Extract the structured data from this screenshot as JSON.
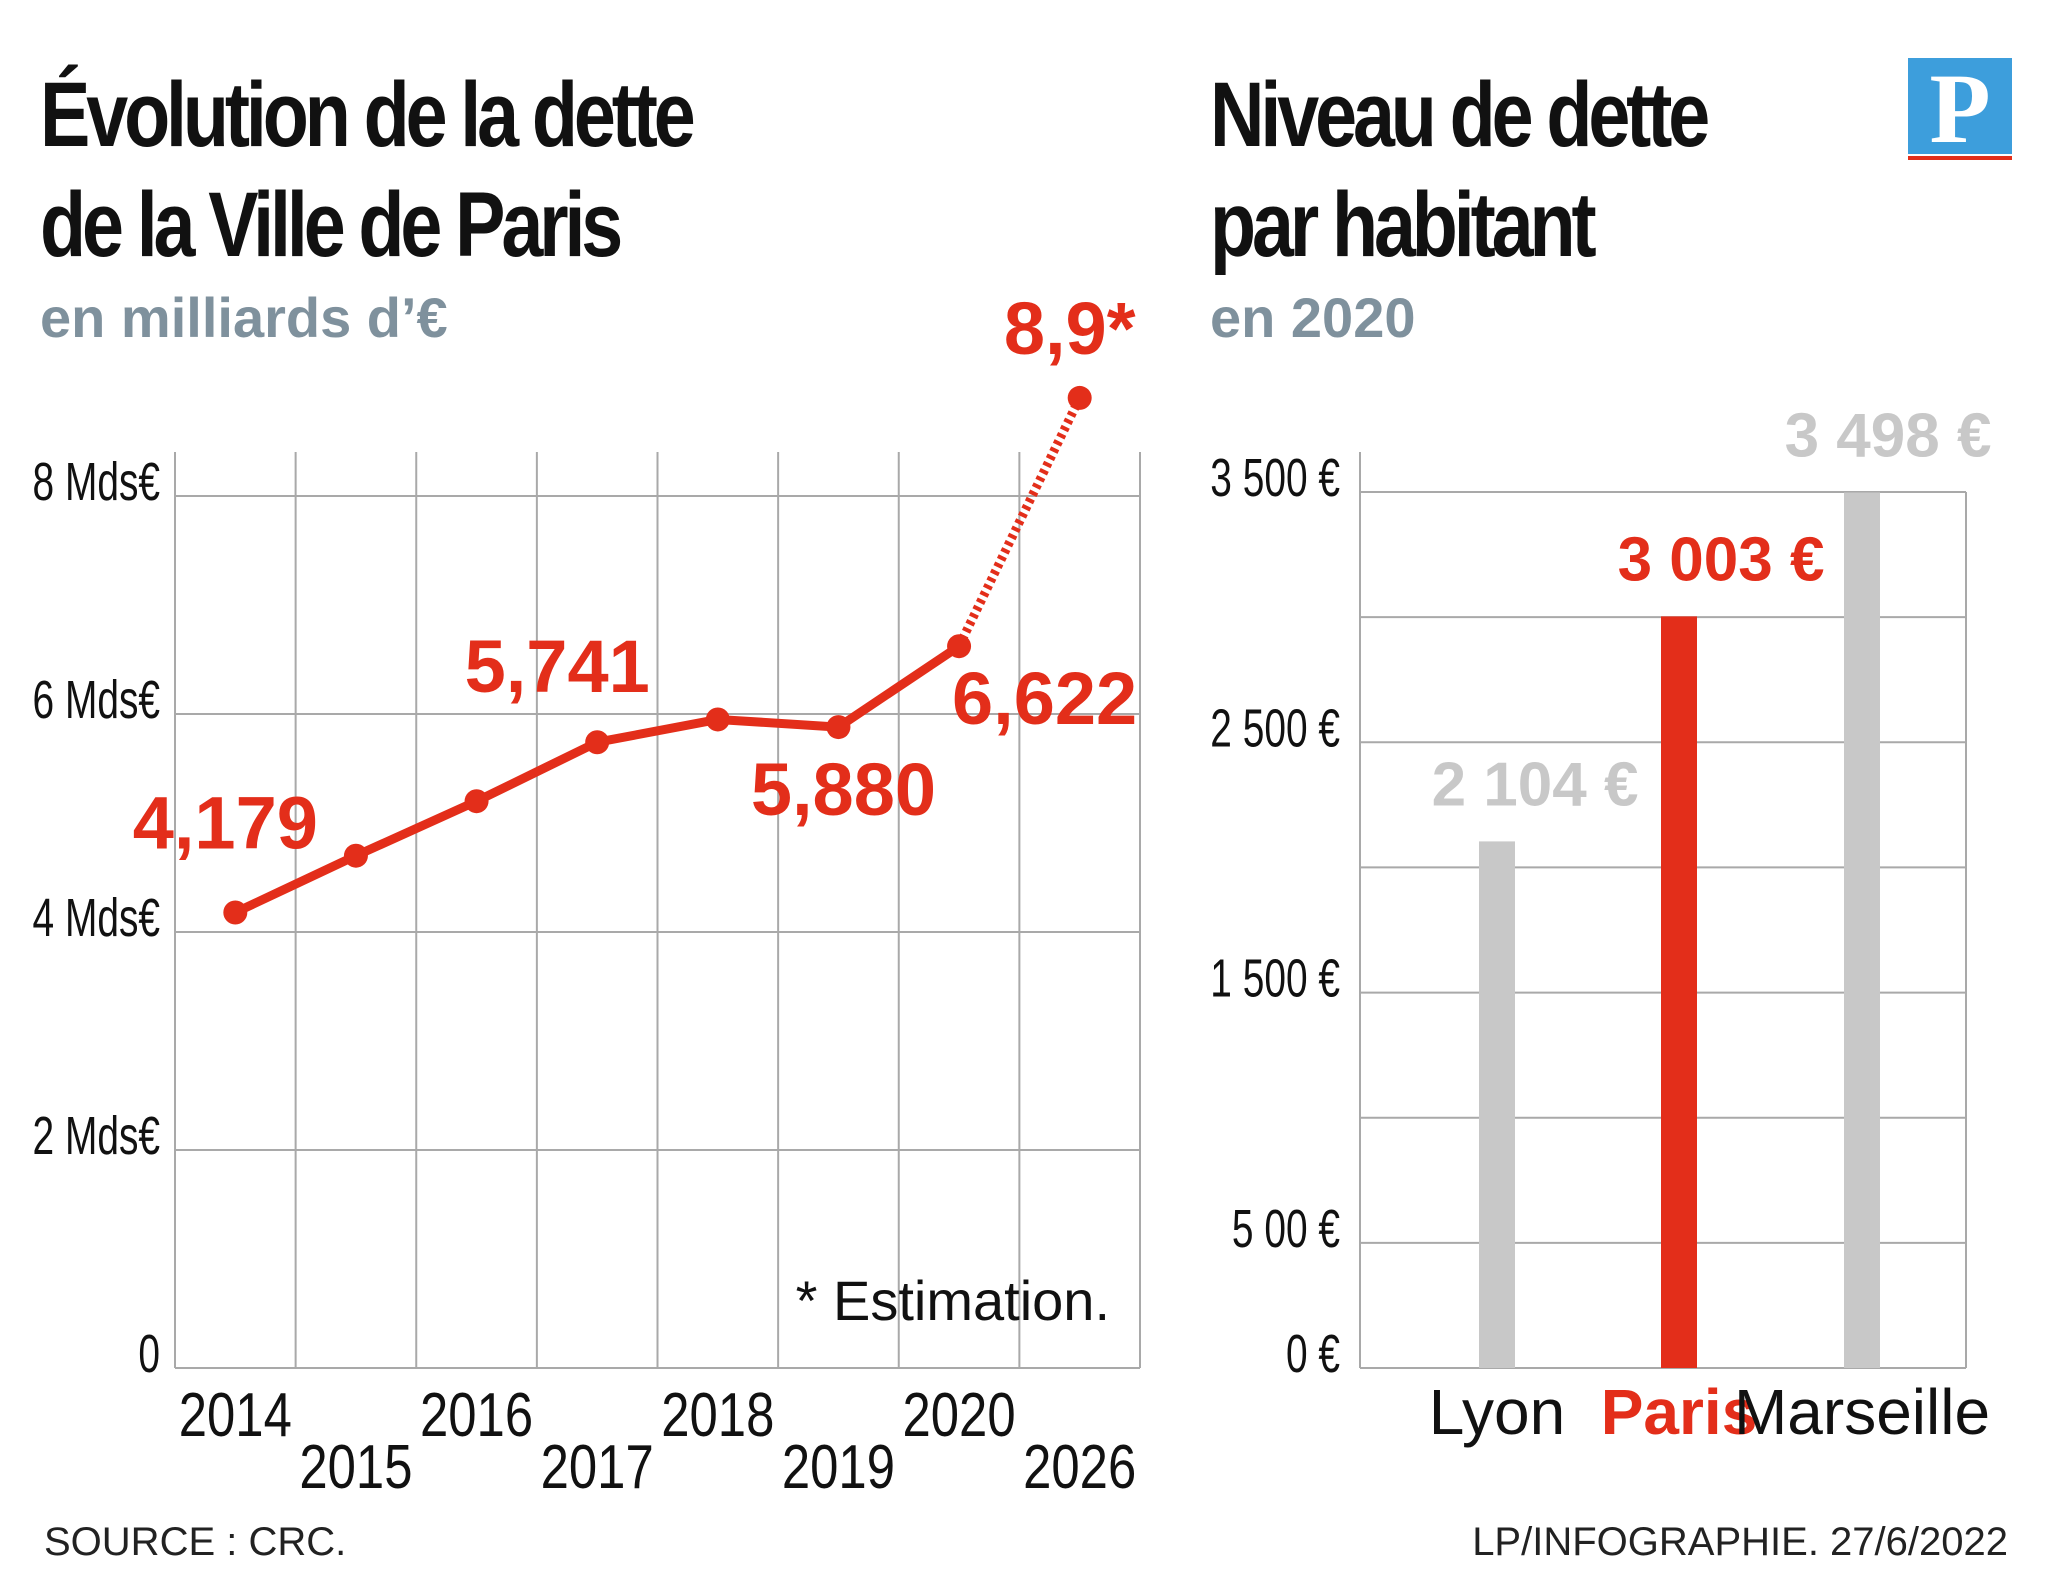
{
  "colors": {
    "accent": "#e32e1a",
    "grey_bar": "#c8c8c8",
    "grid": "#a9a9a9",
    "subtitle": "#7f919d",
    "logo_blue": "#3d9edc"
  },
  "left": {
    "title_line1": "Évolution de la dette",
    "title_line2": "de la Ville de Paris",
    "subtitle": "en milliards d’€",
    "note": "* Estimation."
  },
  "right": {
    "title_line1": "Niveau de dette",
    "title_line2": "par habitant",
    "subtitle": "en 2020"
  },
  "logo": {
    "letter": "P"
  },
  "footer": {
    "source": "SOURCE : CRC.",
    "credit": "LP/INFOGRAPHIE.  27/6/2022"
  },
  "chart_data": [
    {
      "type": "line",
      "x": [
        "2014",
        "2015",
        "2016",
        "2017",
        "2018",
        "2019",
        "2020",
        "2026"
      ],
      "series": [
        {
          "values": [
            4.179,
            4.7,
            5.2,
            5.741,
            5.95,
            5.88,
            6.622,
            8.9
          ]
        }
      ],
      "estimated_from_index": 6,
      "data_labels": [
        {
          "index": 0,
          "text": "4,179"
        },
        {
          "index": 3,
          "text": "5,741"
        },
        {
          "index": 5,
          "text": "5,880"
        },
        {
          "index": 6,
          "text": "6,622"
        },
        {
          "index": 7,
          "text": "8,9*"
        }
      ],
      "yticks": [
        {
          "value": 0,
          "label": "0"
        },
        {
          "value": 2,
          "label": "2 Mds€"
        },
        {
          "value": 4,
          "label": "4 Mds€"
        },
        {
          "value": 6,
          "label": "6 Mds€"
        },
        {
          "value": 8,
          "label": "8 Mds€"
        }
      ],
      "ylim": [
        0,
        8.4
      ],
      "grid": true
    },
    {
      "type": "bar",
      "categories": [
        "Lyon",
        "Paris",
        "Marseille"
      ],
      "values": [
        2104,
        3003,
        3498
      ],
      "value_labels": [
        "2 104 €",
        "3 003 €",
        "3 498 €"
      ],
      "highlight_index": 1,
      "yticks": [
        {
          "value": 0,
          "label": "0 €"
        },
        {
          "value": 500,
          "label": "5 00 €"
        },
        {
          "value": 1500,
          "label": "1 500 €"
        },
        {
          "value": 2500,
          "label": "2 500 €"
        },
        {
          "value": 3500,
          "label": "3 500 €"
        }
      ],
      "ylim": [
        0,
        3500
      ],
      "grid": true
    }
  ]
}
